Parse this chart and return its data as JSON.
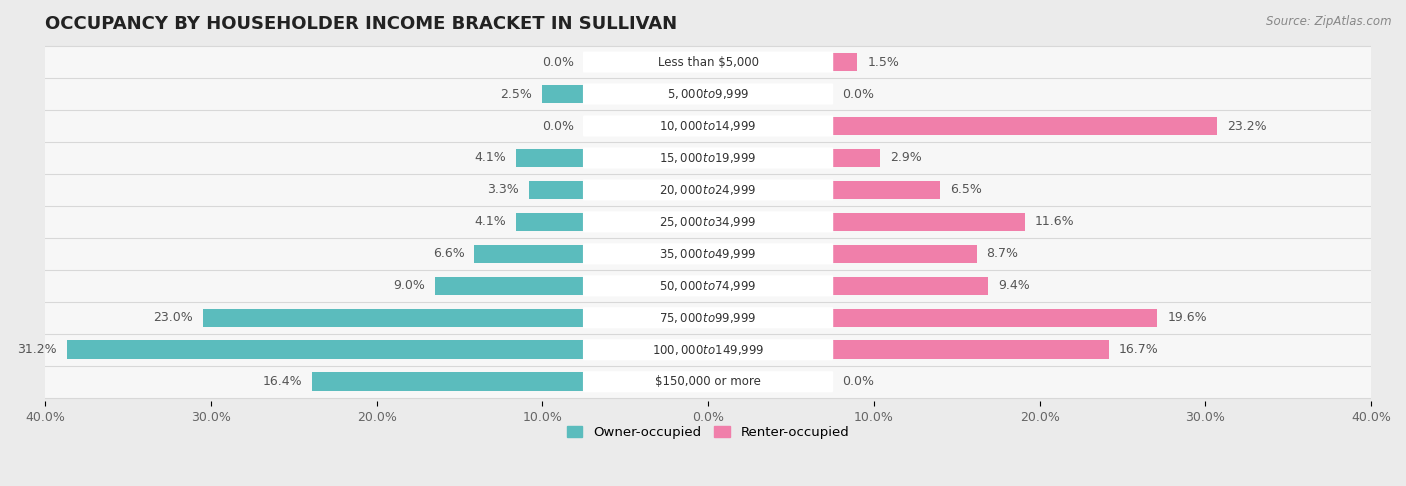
{
  "title": "OCCUPANCY BY HOUSEHOLDER INCOME BRACKET IN SULLIVAN",
  "source": "Source: ZipAtlas.com",
  "categories": [
    "Less than $5,000",
    "$5,000 to $9,999",
    "$10,000 to $14,999",
    "$15,000 to $19,999",
    "$20,000 to $24,999",
    "$25,000 to $34,999",
    "$35,000 to $49,999",
    "$50,000 to $74,999",
    "$75,000 to $99,999",
    "$100,000 to $149,999",
    "$150,000 or more"
  ],
  "owner_values": [
    0.0,
    2.5,
    0.0,
    4.1,
    3.3,
    4.1,
    6.6,
    9.0,
    23.0,
    31.2,
    16.4
  ],
  "renter_values": [
    1.5,
    0.0,
    23.2,
    2.9,
    6.5,
    11.6,
    8.7,
    9.4,
    19.6,
    16.7,
    0.0
  ],
  "owner_color": "#5bbcbd",
  "renter_color": "#f07faa",
  "owner_label": "Owner-occupied",
  "renter_label": "Renter-occupied",
  "xlim": 40.0,
  "background_color": "#ebebeb",
  "bar_background": "#f7f7f7",
  "row_sep_color": "#d8d8d8",
  "title_fontsize": 13,
  "axis_fontsize": 9,
  "label_fontsize": 9,
  "category_fontsize": 8.5,
  "value_color": "#555555"
}
